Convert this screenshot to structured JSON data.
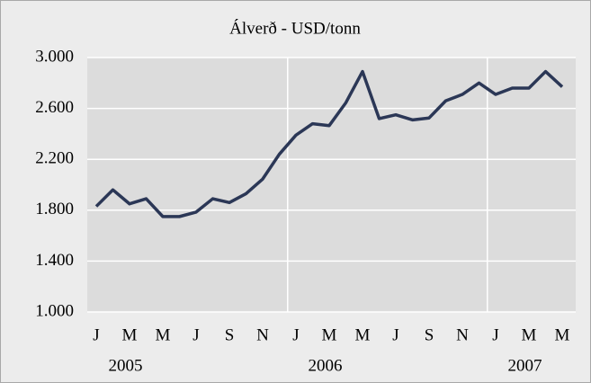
{
  "chart_data": {
    "type": "line",
    "title": "Álverð - USD/tonn",
    "categories": [
      "J",
      null,
      "M",
      null,
      "M",
      null,
      "J",
      null,
      "S",
      null,
      "N",
      null,
      "J",
      null,
      "M",
      null,
      "M",
      null,
      "J",
      null,
      "S",
      null,
      "N",
      null,
      "J",
      null,
      "M",
      null,
      "M"
    ],
    "category_groups": [
      null,
      "2005",
      null,
      null,
      null,
      null,
      null,
      null,
      null,
      null,
      null,
      null,
      null,
      "2006",
      null,
      null,
      null,
      null,
      null,
      null,
      null,
      null,
      null,
      null,
      null,
      "2007",
      null,
      null,
      null
    ],
    "series": [
      {
        "name": "Álverð",
        "color": "#2b3756",
        "values": [
          1830,
          1960,
          1850,
          1890,
          1750,
          1750,
          1785,
          1890,
          1860,
          1930,
          2045,
          2240,
          2390,
          2480,
          2465,
          2645,
          2890,
          2520,
          2550,
          2510,
          2525,
          2660,
          2710,
          2800,
          2710,
          2760,
          2760,
          2890,
          2770
        ]
      }
    ],
    "ylim": [
      1000,
      3000
    ],
    "yticks": [
      {
        "value": 1000,
        "label": "1.000"
      },
      {
        "value": 1400,
        "label": "1.400"
      },
      {
        "value": 1800,
        "label": "1.800"
      },
      {
        "value": 2200,
        "label": "2.200"
      },
      {
        "value": 2600,
        "label": "2.600"
      },
      {
        "value": 3000,
        "label": "3.000"
      }
    ],
    "grid": true
  }
}
